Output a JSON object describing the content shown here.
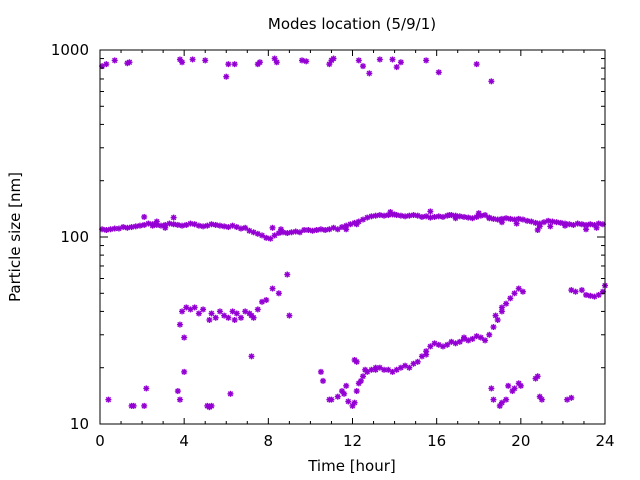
{
  "chart_data": {
    "type": "scatter",
    "title": "Modes location (5/9/1)",
    "xlabel": "Time [hour]",
    "ylabel": "Particle size [nm]",
    "xlim": [
      0,
      24
    ],
    "ylim": [
      10,
      1000
    ],
    "yscale": "log",
    "grid": false,
    "legend": "none",
    "xticks": [
      0,
      4,
      8,
      12,
      16,
      20,
      24
    ],
    "xtick_labels": [
      "0",
      "4",
      "8",
      "12",
      "16",
      "20",
      "24"
    ],
    "yticks": [
      10,
      100,
      1000
    ],
    "ytick_labels": [
      "10",
      "100",
      "1000"
    ],
    "marker_color": "#9400d3",
    "series": [
      {
        "points": [
          [
            0.1,
            820
          ],
          [
            0.3,
            840
          ],
          [
            0.7,
            880
          ],
          [
            1.3,
            850
          ],
          [
            1.4,
            860
          ],
          [
            3.8,
            890
          ],
          [
            3.9,
            860
          ],
          [
            4.4,
            890
          ],
          [
            5.0,
            880
          ],
          [
            6.0,
            720
          ],
          [
            6.1,
            840
          ],
          [
            6.4,
            840
          ],
          [
            7.5,
            840
          ],
          [
            7.6,
            860
          ],
          [
            8.3,
            900
          ],
          [
            8.4,
            860
          ],
          [
            9.6,
            880
          ],
          [
            9.8,
            870
          ],
          [
            10.9,
            840
          ],
          [
            11.0,
            880
          ],
          [
            11.1,
            900
          ],
          [
            12.3,
            880
          ],
          [
            12.5,
            820
          ],
          [
            12.8,
            750
          ],
          [
            13.3,
            890
          ],
          [
            13.9,
            890
          ],
          [
            14.1,
            810
          ],
          [
            14.3,
            860
          ],
          [
            15.5,
            880
          ],
          [
            16.1,
            760
          ],
          [
            17.9,
            840
          ],
          [
            18.6,
            680
          ],
          [
            0.1,
            110
          ],
          [
            0.3,
            109
          ],
          [
            0.5,
            110
          ],
          [
            0.7,
            111
          ],
          [
            0.9,
            111
          ],
          [
            1.1,
            113
          ],
          [
            1.3,
            112
          ],
          [
            1.5,
            113
          ],
          [
            1.7,
            114
          ],
          [
            1.9,
            115
          ],
          [
            2.1,
            116
          ],
          [
            2.3,
            118
          ],
          [
            2.5,
            117
          ],
          [
            2.7,
            116
          ],
          [
            2.9,
            115
          ],
          [
            3.1,
            116
          ],
          [
            3.3,
            118
          ],
          [
            3.5,
            117
          ],
          [
            3.7,
            116
          ],
          [
            3.9,
            115
          ],
          [
            4.1,
            116
          ],
          [
            4.3,
            118
          ],
          [
            4.5,
            117
          ],
          [
            4.7,
            115
          ],
          [
            4.9,
            114
          ],
          [
            5.1,
            115
          ],
          [
            5.3,
            117
          ],
          [
            5.5,
            116
          ],
          [
            5.7,
            115
          ],
          [
            5.9,
            114
          ],
          [
            6.1,
            113
          ],
          [
            6.3,
            115
          ],
          [
            6.5,
            113
          ],
          [
            6.7,
            111
          ],
          [
            6.9,
            112
          ],
          [
            7.1,
            108
          ],
          [
            7.3,
            106
          ],
          [
            7.5,
            104
          ],
          [
            7.7,
            102
          ],
          [
            7.9,
            99
          ],
          [
            8.1,
            98
          ],
          [
            8.3,
            102
          ],
          [
            8.5,
            105
          ],
          [
            8.7,
            106
          ],
          [
            8.9,
            105
          ],
          [
            9.1,
            106
          ],
          [
            9.3,
            107
          ],
          [
            9.5,
            106
          ],
          [
            9.7,
            109
          ],
          [
            9.9,
            109
          ],
          [
            10.1,
            108
          ],
          [
            10.3,
            109
          ],
          [
            10.5,
            110
          ],
          [
            10.7,
            109
          ],
          [
            10.9,
            110
          ],
          [
            11.1,
            112
          ],
          [
            11.3,
            110
          ],
          [
            11.5,
            113
          ],
          [
            11.7,
            115
          ],
          [
            11.9,
            117
          ],
          [
            12.1,
            119
          ],
          [
            12.3,
            121
          ],
          [
            12.5,
            124
          ],
          [
            12.7,
            127
          ],
          [
            12.9,
            129
          ],
          [
            13.1,
            130
          ],
          [
            13.3,
            131
          ],
          [
            13.5,
            130
          ],
          [
            13.7,
            131
          ],
          [
            13.9,
            132
          ],
          [
            14.1,
            131
          ],
          [
            14.3,
            130
          ],
          [
            14.5,
            129
          ],
          [
            14.7,
            130
          ],
          [
            14.9,
            131
          ],
          [
            15.1,
            130
          ],
          [
            15.3,
            128
          ],
          [
            15.5,
            129
          ],
          [
            15.7,
            127
          ],
          [
            15.9,
            128
          ],
          [
            16.1,
            129
          ],
          [
            16.3,
            128
          ],
          [
            16.5,
            130
          ],
          [
            16.7,
            131
          ],
          [
            16.9,
            130
          ],
          [
            17.1,
            129
          ],
          [
            17.3,
            128
          ],
          [
            17.5,
            127
          ],
          [
            17.7,
            126
          ],
          [
            17.9,
            128
          ],
          [
            18.1,
            130
          ],
          [
            18.3,
            131
          ],
          [
            18.5,
            127
          ],
          [
            18.7,
            125
          ],
          [
            18.9,
            124
          ],
          [
            19.1,
            125
          ],
          [
            19.3,
            126
          ],
          [
            19.5,
            125
          ],
          [
            19.7,
            124
          ],
          [
            19.9,
            125
          ],
          [
            20.1,
            124
          ],
          [
            20.3,
            122
          ],
          [
            20.5,
            121
          ],
          [
            20.7,
            119
          ],
          [
            20.9,
            118
          ],
          [
            21.1,
            120
          ],
          [
            21.3,
            122
          ],
          [
            21.5,
            121
          ],
          [
            21.7,
            120
          ],
          [
            21.9,
            119
          ],
          [
            22.1,
            118
          ],
          [
            22.3,
            117
          ],
          [
            22.5,
            116
          ],
          [
            22.7,
            118
          ],
          [
            22.9,
            117
          ],
          [
            23.1,
            116
          ],
          [
            23.3,
            117
          ],
          [
            23.5,
            116
          ],
          [
            23.7,
            118
          ],
          [
            23.9,
            117
          ],
          [
            2.1,
            128
          ],
          [
            2.5,
            115
          ],
          [
            2.7,
            121
          ],
          [
            3.1,
            112
          ],
          [
            3.5,
            127
          ],
          [
            8.2,
            112
          ],
          [
            8.6,
            110
          ],
          [
            11.7,
            110
          ],
          [
            12.2,
            117
          ],
          [
            13.8,
            136
          ],
          [
            14.0,
            132
          ],
          [
            15.7,
            137
          ],
          [
            16.6,
            131
          ],
          [
            16.9,
            126
          ],
          [
            18.0,
            134
          ],
          [
            18.5,
            126
          ],
          [
            19.1,
            120
          ],
          [
            19.8,
            118
          ],
          [
            20.8,
            109
          ],
          [
            20.9,
            114
          ],
          [
            21.4,
            114
          ],
          [
            22.1,
            115
          ],
          [
            23.1,
            110
          ],
          [
            23.6,
            112
          ],
          [
            3.8,
            34
          ],
          [
            3.9,
            40
          ],
          [
            4.0,
            29
          ],
          [
            4.1,
            42
          ],
          [
            4.3,
            41
          ],
          [
            4.5,
            42
          ],
          [
            4.7,
            39
          ],
          [
            4.9,
            41
          ],
          [
            5.3,
            39
          ],
          [
            5.5,
            37
          ],
          [
            5.7,
            40
          ],
          [
            5.9,
            38
          ],
          [
            6.1,
            37
          ],
          [
            6.3,
            40
          ],
          [
            6.5,
            39
          ],
          [
            6.7,
            37
          ],
          [
            6.9,
            40
          ],
          [
            7.1,
            39
          ],
          [
            7.3,
            37
          ],
          [
            7.5,
            41
          ],
          [
            7.7,
            45
          ],
          [
            7.9,
            46
          ],
          [
            8.2,
            53
          ],
          [
            8.5,
            50
          ],
          [
            8.9,
            63
          ],
          [
            9.0,
            38
          ],
          [
            5.2,
            36
          ],
          [
            6.4,
            36
          ],
          [
            7.2,
            38
          ],
          [
            7.2,
            23
          ],
          [
            4.0,
            19
          ],
          [
            0.4,
            13.5
          ],
          [
            1.5,
            12.5
          ],
          [
            1.6,
            12.5
          ],
          [
            2.1,
            12.5
          ],
          [
            2.2,
            15.5
          ],
          [
            3.7,
            15
          ],
          [
            3.8,
            13.5
          ],
          [
            5.1,
            12.5
          ],
          [
            5.2,
            12.3
          ],
          [
            5.3,
            12.5
          ],
          [
            6.2,
            14.5
          ],
          [
            10.5,
            19
          ],
          [
            10.6,
            17
          ],
          [
            10.9,
            13.5
          ],
          [
            11.0,
            13.5
          ],
          [
            11.3,
            14
          ],
          [
            11.5,
            15
          ],
          [
            11.6,
            14.5
          ],
          [
            11.7,
            16
          ],
          [
            11.8,
            13.2
          ],
          [
            12.0,
            12.5
          ],
          [
            12.1,
            13
          ],
          [
            12.2,
            15
          ],
          [
            12.3,
            16.5
          ],
          [
            12.4,
            17
          ],
          [
            12.5,
            18
          ],
          [
            12.6,
            19.5
          ],
          [
            12.7,
            19
          ],
          [
            12.9,
            19.5
          ],
          [
            13.1,
            20
          ],
          [
            13.3,
            20
          ],
          [
            13.5,
            19.5
          ],
          [
            13.7,
            19.5
          ],
          [
            13.9,
            19
          ],
          [
            14.1,
            19.5
          ],
          [
            14.3,
            20
          ],
          [
            14.5,
            20.5
          ],
          [
            14.7,
            20
          ],
          [
            14.9,
            21
          ],
          [
            15.1,
            21.5
          ],
          [
            15.3,
            23
          ],
          [
            15.5,
            24.5
          ],
          [
            15.7,
            26
          ],
          [
            15.9,
            27
          ],
          [
            16.1,
            26.5
          ],
          [
            16.3,
            26
          ],
          [
            16.5,
            26.5
          ],
          [
            16.7,
            27.5
          ],
          [
            16.9,
            27
          ],
          [
            17.1,
            27.5
          ],
          [
            17.3,
            28.5
          ],
          [
            17.5,
            28
          ],
          [
            17.7,
            28.5
          ],
          [
            17.9,
            29.5
          ],
          [
            18.1,
            29
          ],
          [
            18.3,
            28
          ],
          [
            18.5,
            30
          ],
          [
            18.7,
            33
          ],
          [
            18.9,
            36
          ],
          [
            19.1,
            40
          ],
          [
            19.3,
            44
          ],
          [
            19.5,
            47
          ],
          [
            19.7,
            50
          ],
          [
            19.9,
            53
          ],
          [
            20.1,
            51
          ],
          [
            12.1,
            22
          ],
          [
            12.2,
            21.5
          ],
          [
            13.1,
            19.5
          ],
          [
            15.5,
            23.5
          ],
          [
            17.3,
            29
          ],
          [
            18.8,
            38
          ],
          [
            19.1,
            42
          ],
          [
            18.6,
            15.5
          ],
          [
            18.7,
            13.5
          ],
          [
            19.0,
            12.5
          ],
          [
            19.1,
            13
          ],
          [
            19.3,
            13.5
          ],
          [
            19.4,
            16
          ],
          [
            19.6,
            15
          ],
          [
            19.7,
            15.5
          ],
          [
            19.9,
            16.5
          ],
          [
            20.0,
            16
          ],
          [
            20.7,
            17.5
          ],
          [
            20.8,
            18
          ],
          [
            20.9,
            14
          ],
          [
            21.0,
            13.5
          ],
          [
            22.2,
            13.5
          ],
          [
            22.4,
            13.8
          ],
          [
            22.4,
            52
          ],
          [
            22.6,
            51
          ],
          [
            22.9,
            52
          ],
          [
            23.1,
            49
          ],
          [
            23.3,
            48.5
          ],
          [
            23.5,
            48
          ],
          [
            23.7,
            49
          ],
          [
            23.9,
            51
          ],
          [
            24.0,
            55
          ]
        ]
      }
    ]
  }
}
